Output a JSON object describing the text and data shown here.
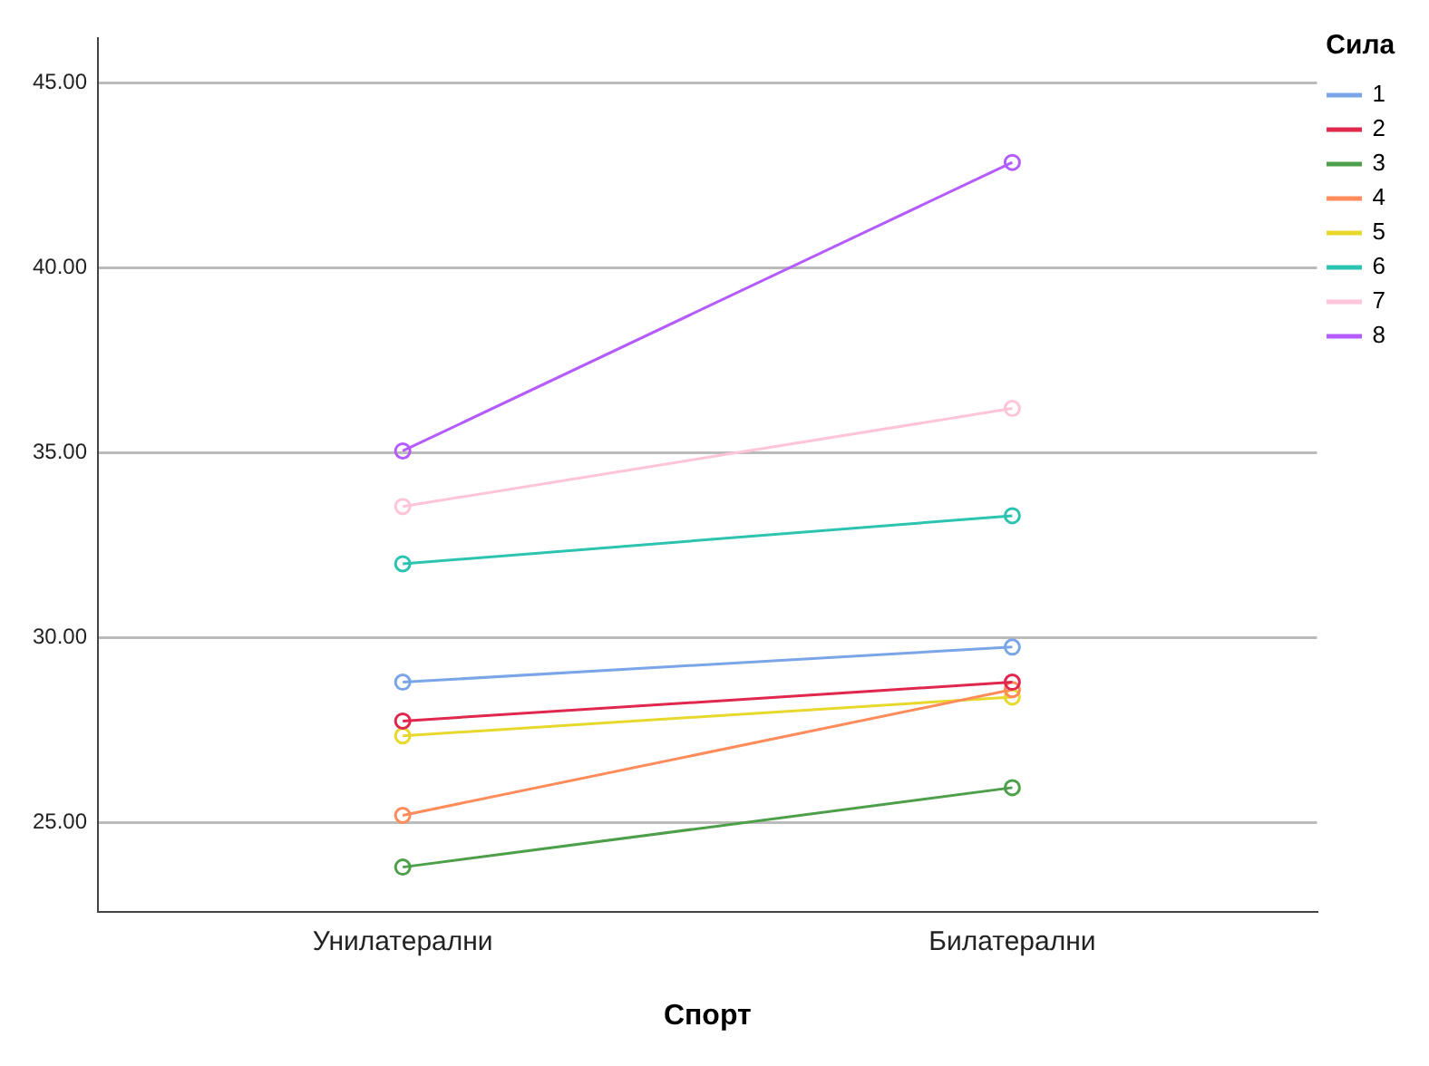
{
  "chart_data": {
    "type": "line",
    "xlabel": "Спорт",
    "legend_title": "Сила",
    "categories": [
      "Унилатерални",
      "Билатерални"
    ],
    "series": [
      {
        "name": "1",
        "color": "#7aa6e8",
        "values": [
          28.8,
          29.75
        ]
      },
      {
        "name": "2",
        "color": "#e0284f",
        "values": [
          27.75,
          28.8
        ]
      },
      {
        "name": "3",
        "color": "#4da049",
        "values": [
          23.8,
          25.95
        ]
      },
      {
        "name": "4",
        "color": "#ff8c5a",
        "values": [
          25.2,
          28.6
        ]
      },
      {
        "name": "5",
        "color": "#e8d82c",
        "values": [
          27.35,
          28.4
        ]
      },
      {
        "name": "6",
        "color": "#2cc4b0",
        "values": [
          32.0,
          33.3
        ]
      },
      {
        "name": "7",
        "color": "#ffc4d8",
        "values": [
          33.55,
          36.2
        ]
      },
      {
        "name": "8",
        "color": "#b45cff",
        "values": [
          35.05,
          42.85
        ]
      }
    ],
    "ylim": [
      22.6,
      46.2
    ],
    "yticks": [
      {
        "value": 25,
        "label": "25.00"
      },
      {
        "value": 30,
        "label": "30.00"
      },
      {
        "value": 35,
        "label": "35.00"
      },
      {
        "value": 40,
        "label": "40.00"
      },
      {
        "value": 45,
        "label": "45.00"
      }
    ],
    "grid": "y",
    "legend": "top right",
    "marker": "circle",
    "line_style": "solid"
  }
}
